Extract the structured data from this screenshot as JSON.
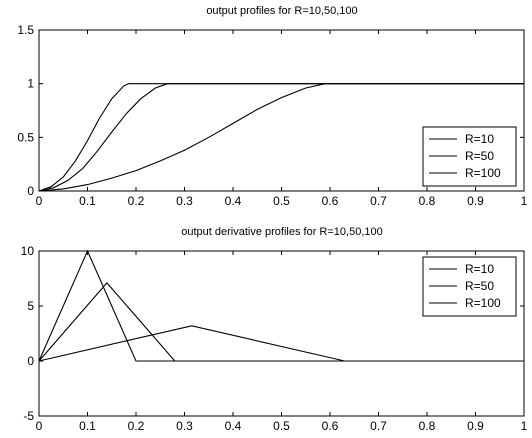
{
  "chart_data": [
    {
      "type": "line",
      "title": "output profiles for R=10,50,100",
      "xlim": [
        0,
        1
      ],
      "ylim": [
        0,
        1.5
      ],
      "xticks": [
        0,
        0.1,
        0.2,
        0.3,
        0.4,
        0.5,
        0.6,
        0.7,
        0.8,
        0.9,
        1
      ],
      "yticks": [
        0,
        0.5,
        1,
        1.5
      ],
      "xtick_labels": [
        "0",
        "0.1",
        "0.2",
        "0.3",
        "0.4",
        "0.5",
        "0.6",
        "0.7",
        "0.8",
        "0.9",
        "1"
      ],
      "ytick_labels": [
        "0",
        "0.5",
        "1",
        "1.5"
      ],
      "grid": false,
      "legend_position": "bottom-right",
      "series": [
        {
          "name": "R=10",
          "x": [
            0,
            0.025,
            0.05,
            0.075,
            0.1,
            0.125,
            0.15,
            0.175,
            0.185,
            1
          ],
          "y": [
            0,
            0.04,
            0.13,
            0.28,
            0.47,
            0.68,
            0.86,
            0.98,
            1,
            1
          ]
        },
        {
          "name": "R=50",
          "x": [
            0,
            0.03,
            0.06,
            0.09,
            0.12,
            0.15,
            0.18,
            0.21,
            0.24,
            0.265,
            1
          ],
          "y": [
            0,
            0.03,
            0.1,
            0.21,
            0.37,
            0.55,
            0.72,
            0.86,
            0.96,
            1,
            1
          ]
        },
        {
          "name": "R=100",
          "x": [
            0,
            0.05,
            0.1,
            0.15,
            0.2,
            0.25,
            0.3,
            0.35,
            0.4,
            0.45,
            0.5,
            0.55,
            0.59,
            1
          ],
          "y": [
            0,
            0.02,
            0.06,
            0.12,
            0.19,
            0.28,
            0.38,
            0.5,
            0.63,
            0.76,
            0.87,
            0.96,
            1,
            1
          ]
        }
      ]
    },
    {
      "type": "line",
      "title": "output derivative profiles for R=10,50,100",
      "xlim": [
        0,
        1
      ],
      "ylim": [
        -5,
        10
      ],
      "xticks": [
        0,
        0.1,
        0.2,
        0.3,
        0.4,
        0.5,
        0.6,
        0.7,
        0.8,
        0.9,
        1
      ],
      "yticks": [
        -5,
        0,
        5,
        10
      ],
      "xtick_labels": [
        "0",
        "0.1",
        "0.2",
        "0.3",
        "0.4",
        "0.5",
        "0.6",
        "0.7",
        "0.8",
        "0.9",
        "1"
      ],
      "ytick_labels": [
        "-5",
        "0",
        "5",
        "10"
      ],
      "grid": false,
      "legend_position": "top-right",
      "series": [
        {
          "name": "R=10",
          "x": [
            0,
            0.1,
            0.2,
            1
          ],
          "y": [
            0,
            10,
            0,
            0
          ]
        },
        {
          "name": "R=50",
          "x": [
            0,
            0.14,
            0.28,
            1
          ],
          "y": [
            0,
            7.1,
            0,
            0
          ]
        },
        {
          "name": "R=100",
          "x": [
            0,
            0.315,
            0.63,
            1
          ],
          "y": [
            0,
            3.2,
            0,
            0
          ]
        }
      ]
    }
  ]
}
